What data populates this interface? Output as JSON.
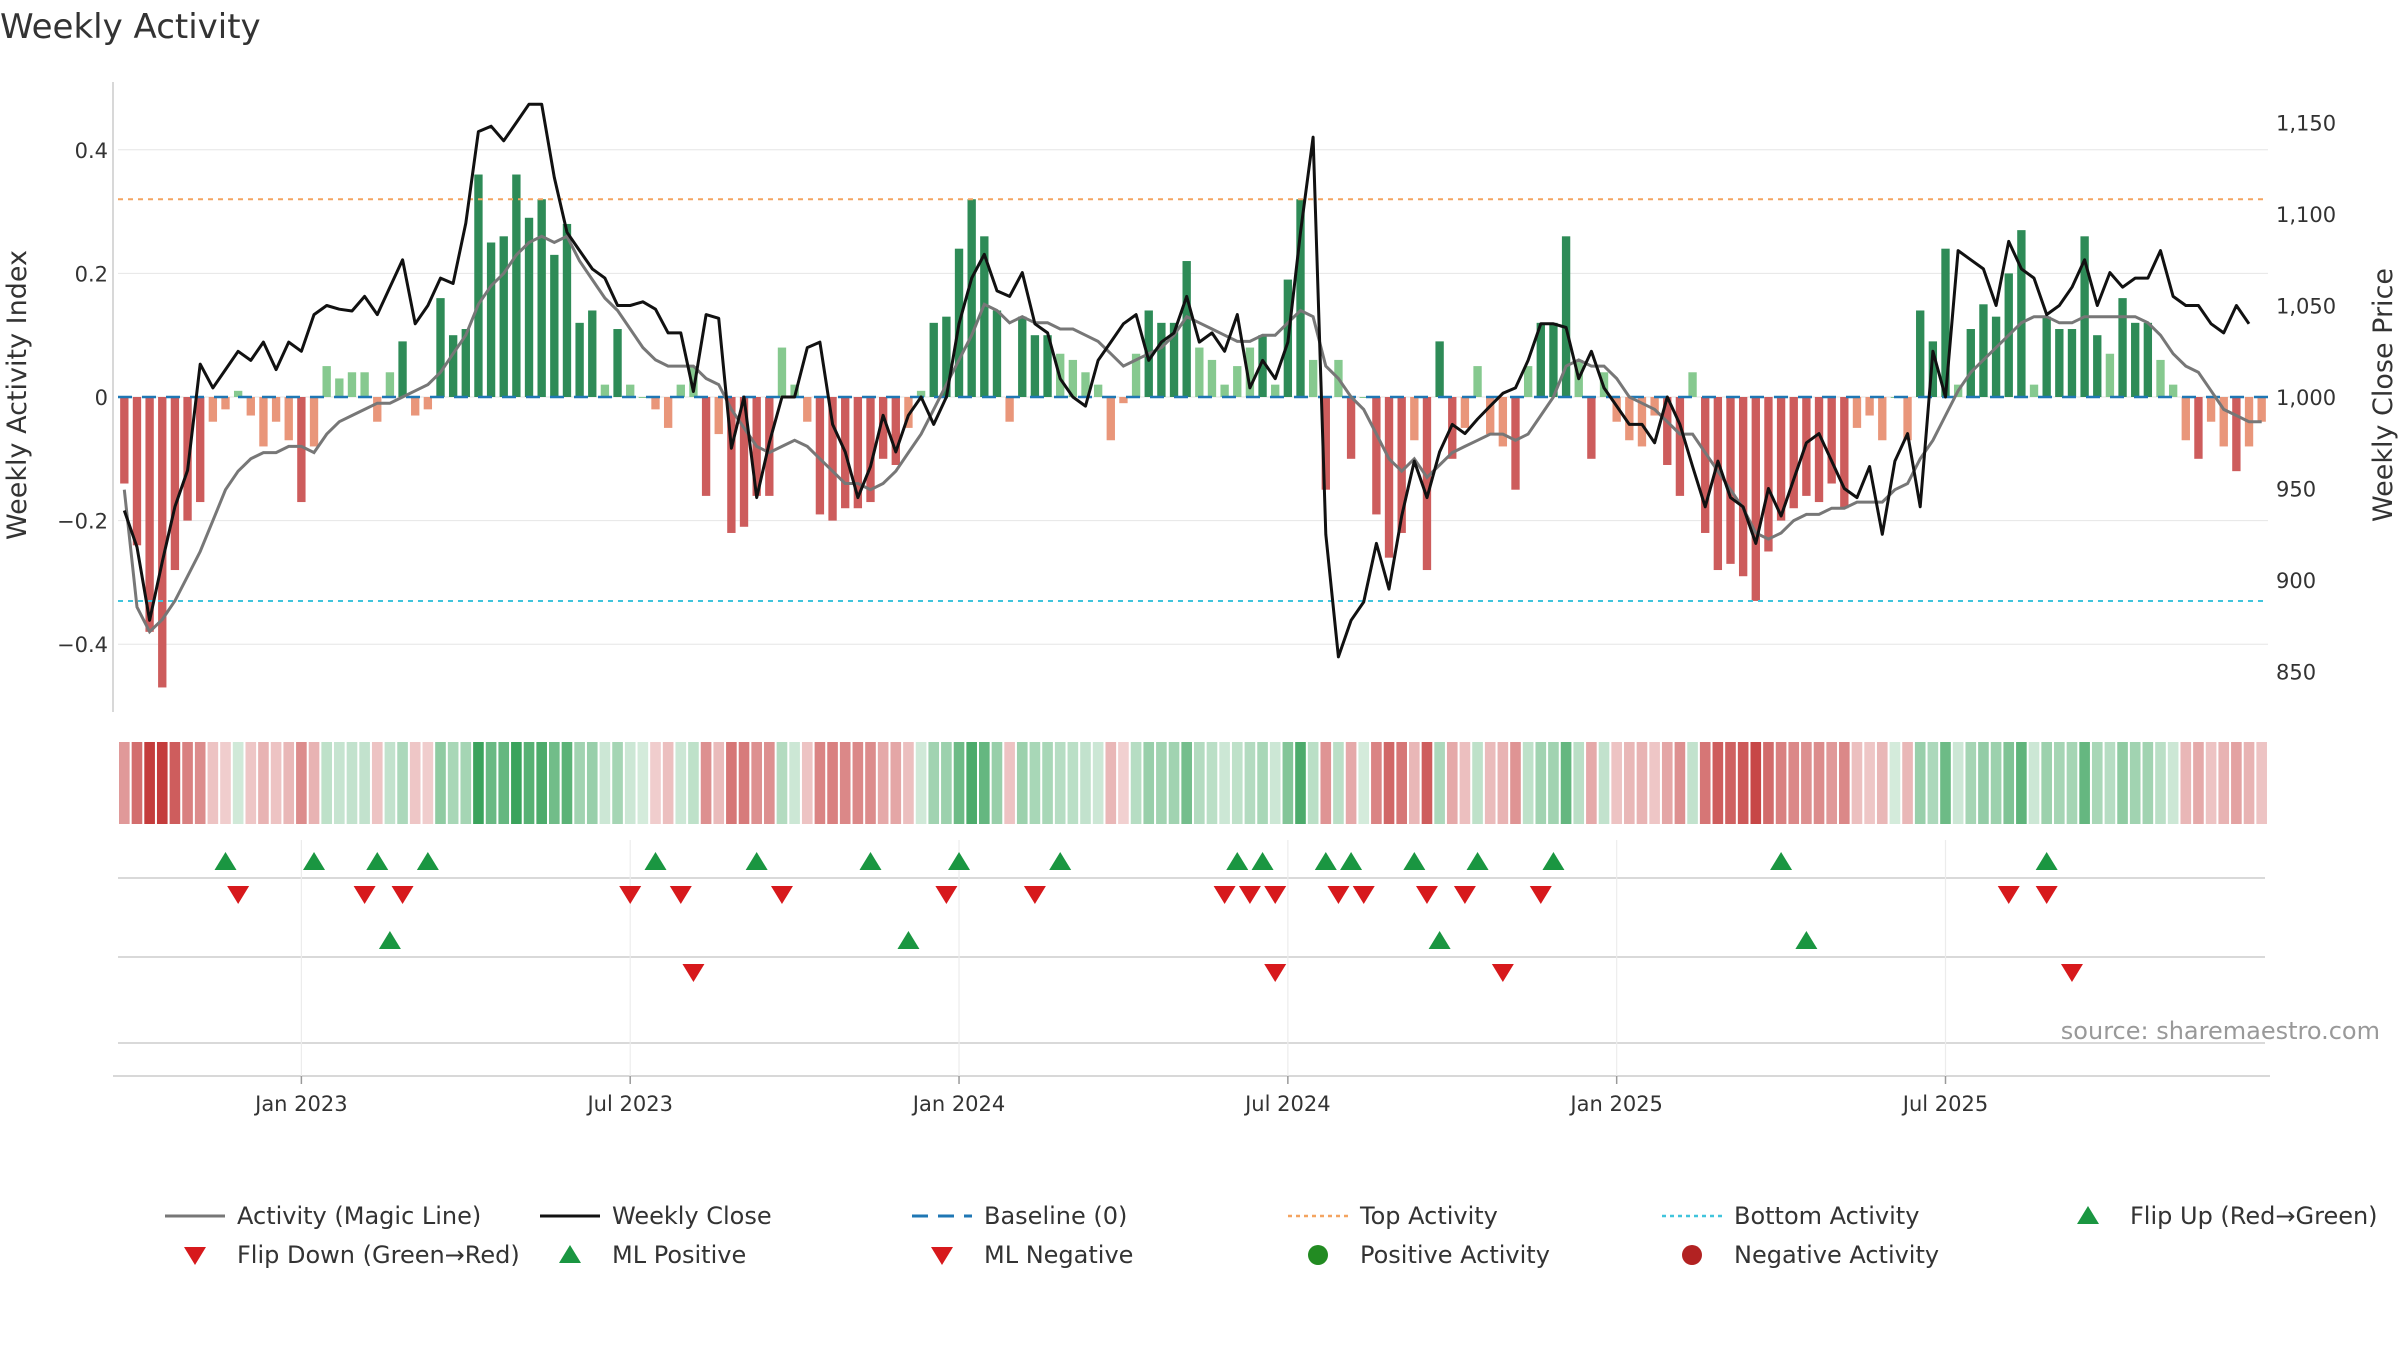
{
  "chart_data": {
    "type": "bar",
    "title": "Weekly Activity",
    "ylabel_left": "Weekly Activity Index",
    "ylabel_right": "Weekly Close Price",
    "source": "source: sharemaestro.com",
    "ylim_left": [
      -0.5,
      0.52
    ],
    "ylim_right": [
      832,
      1168
    ],
    "yticks_left": [
      {
        "v": 0.4,
        "label": "0.4"
      },
      {
        "v": 0.2,
        "label": "0.2"
      },
      {
        "v": 0,
        "label": "0"
      },
      {
        "v": -0.2,
        "label": "−0.2"
      },
      {
        "v": -0.4,
        "label": "−0.4"
      }
    ],
    "yticks_right": [
      {
        "v": 1150,
        "label": "1,150"
      },
      {
        "v": 1100,
        "label": "1,100"
      },
      {
        "v": 1050,
        "label": "1,050"
      },
      {
        "v": 1000,
        "label": "1,000"
      },
      {
        "v": 950,
        "label": "950"
      },
      {
        "v": 900,
        "label": "900"
      },
      {
        "v": 850,
        "label": "850"
      }
    ],
    "xticks": [
      {
        "week": 14.5,
        "label": "Jan 2023"
      },
      {
        "week": 40.5,
        "label": "Jul 2023"
      },
      {
        "week": 66.5,
        "label": "Jan 2024"
      },
      {
        "week": 92.5,
        "label": "Jul 2024"
      },
      {
        "week": 118.5,
        "label": "Jan 2025"
      },
      {
        "week": 144.5,
        "label": "Jul 2025"
      }
    ],
    "top_activity": 0.32,
    "bottom_activity": -0.33,
    "baseline": 0,
    "colors": {
      "pos_strong": "#2e8b57",
      "pos_light": "#86c98f",
      "neg_strong": "#cd5c5c",
      "neg_light": "#e9967a",
      "magic_line": "#777777",
      "close_line": "#111111",
      "baseline": "#1f77b4",
      "top": "#f4a460",
      "bottom": "#40c4dc",
      "up_marker": "#1a9641",
      "down_marker": "#d7191c",
      "pos_dot": "#228b22",
      "neg_dot": "#b22222"
    },
    "activity": [
      -0.14,
      -0.24,
      -0.38,
      -0.47,
      -0.28,
      -0.2,
      -0.17,
      -0.04,
      -0.02,
      0.01,
      -0.03,
      -0.08,
      -0.04,
      -0.07,
      -0.17,
      -0.08,
      0.05,
      0.03,
      0.04,
      0.04,
      -0.04,
      0.04,
      0.09,
      -0.03,
      -0.02,
      0.16,
      0.1,
      0.11,
      0.36,
      0.25,
      0.26,
      0.36,
      0.29,
      0.32,
      0.23,
      0.28,
      0.12,
      0.14,
      0.02,
      0.11,
      0.02,
      0.0,
      -0.02,
      -0.05,
      0.02,
      0.05,
      -0.16,
      -0.06,
      -0.22,
      -0.21,
      -0.16,
      -0.16,
      0.08,
      0.02,
      -0.04,
      -0.19,
      -0.2,
      -0.18,
      -0.18,
      -0.17,
      -0.1,
      -0.11,
      -0.05,
      0.01,
      0.12,
      0.13,
      0.24,
      0.32,
      0.26,
      0.14,
      -0.04,
      0.13,
      0.1,
      0.1,
      0.07,
      0.06,
      0.04,
      0.02,
      -0.07,
      -0.01,
      0.07,
      0.14,
      0.12,
      0.12,
      0.22,
      0.08,
      0.06,
      0.02,
      0.05,
      0.08,
      0.1,
      0.02,
      0.19,
      0.32,
      0.06,
      -0.15,
      0.06,
      -0.1,
      0.0,
      -0.19,
      -0.26,
      -0.22,
      -0.07,
      -0.28,
      0.09,
      -0.1,
      -0.05,
      0.05,
      -0.06,
      -0.08,
      -0.15,
      0.05,
      0.12,
      0.12,
      0.26,
      0.06,
      -0.1,
      0.04,
      -0.04,
      -0.07,
      -0.08,
      -0.03,
      -0.11,
      -0.16,
      0.04,
      -0.22,
      -0.28,
      -0.27,
      -0.29,
      -0.33,
      -0.25,
      -0.2,
      -0.18,
      -0.16,
      -0.17,
      -0.14,
      -0.18,
      -0.05,
      -0.03,
      -0.07,
      0.0,
      -0.07,
      0.14,
      0.09,
      0.24,
      0.02,
      0.11,
      0.15,
      0.13,
      0.2,
      0.27,
      0.02,
      0.13,
      0.11,
      0.11,
      0.26,
      0.1,
      0.07,
      0.16,
      0.12,
      0.12,
      0.06,
      0.02,
      -0.07,
      -0.1,
      -0.04,
      -0.08,
      -0.12,
      -0.08,
      -0.04
    ],
    "magic_line": [
      -0.15,
      -0.34,
      -0.38,
      -0.36,
      -0.33,
      -0.29,
      -0.25,
      -0.2,
      -0.15,
      -0.12,
      -0.1,
      -0.09,
      -0.09,
      -0.08,
      -0.08,
      -0.09,
      -0.06,
      -0.04,
      -0.03,
      -0.02,
      -0.01,
      -0.01,
      0.0,
      0.01,
      0.02,
      0.04,
      0.07,
      0.1,
      0.15,
      0.18,
      0.2,
      0.23,
      0.25,
      0.26,
      0.25,
      0.26,
      0.22,
      0.19,
      0.16,
      0.14,
      0.11,
      0.08,
      0.06,
      0.05,
      0.05,
      0.05,
      0.03,
      0.02,
      -0.02,
      -0.05,
      -0.08,
      -0.09,
      -0.08,
      -0.07,
      -0.08,
      -0.1,
      -0.12,
      -0.14,
      -0.14,
      -0.15,
      -0.14,
      -0.12,
      -0.09,
      -0.06,
      -0.02,
      0.02,
      0.06,
      0.1,
      0.15,
      0.14,
      0.12,
      0.13,
      0.12,
      0.12,
      0.11,
      0.11,
      0.1,
      0.09,
      0.07,
      0.05,
      0.06,
      0.07,
      0.08,
      0.1,
      0.13,
      0.12,
      0.11,
      0.1,
      0.09,
      0.09,
      0.1,
      0.1,
      0.12,
      0.14,
      0.13,
      0.05,
      0.03,
      0.0,
      -0.02,
      -0.06,
      -0.1,
      -0.12,
      -0.1,
      -0.13,
      -0.11,
      -0.09,
      -0.08,
      -0.07,
      -0.06,
      -0.06,
      -0.07,
      -0.06,
      -0.03,
      0.0,
      0.05,
      0.06,
      0.05,
      0.05,
      0.03,
      0.0,
      -0.01,
      -0.02,
      -0.04,
      -0.06,
      -0.06,
      -0.09,
      -0.12,
      -0.15,
      -0.18,
      -0.22,
      -0.23,
      -0.22,
      -0.2,
      -0.19,
      -0.19,
      -0.18,
      -0.18,
      -0.17,
      -0.17,
      -0.17,
      -0.15,
      -0.14,
      -0.1,
      -0.07,
      -0.03,
      0.01,
      0.04,
      0.06,
      0.08,
      0.1,
      0.12,
      0.13,
      0.13,
      0.12,
      0.12,
      0.13,
      0.13,
      0.13,
      0.13,
      0.13,
      0.12,
      0.1,
      0.07,
      0.05,
      0.04,
      0.01,
      -0.02,
      -0.03,
      -0.04,
      -0.04
    ],
    "weekly_close": [
      938,
      918,
      878,
      910,
      940,
      960,
      1018,
      1005,
      1015,
      1025,
      1020,
      1030,
      1015,
      1030,
      1025,
      1045,
      1050,
      1048,
      1047,
      1055,
      1045,
      1060,
      1075,
      1040,
      1050,
      1065,
      1062,
      1095,
      1145,
      1148,
      1140,
      1150,
      1160,
      1160,
      1120,
      1090,
      1080,
      1070,
      1065,
      1050,
      1050,
      1052,
      1048,
      1035,
      1035,
      1003,
      1045,
      1043,
      972,
      1000,
      945,
      975,
      1000,
      1000,
      1027,
      1030,
      985,
      970,
      945,
      962,
      990,
      970,
      990,
      1000,
      985,
      1000,
      1040,
      1065,
      1078,
      1058,
      1055,
      1068,
      1040,
      1035,
      1010,
      1000,
      995,
      1020,
      1030,
      1040,
      1045,
      1020,
      1030,
      1035,
      1055,
      1030,
      1035,
      1025,
      1045,
      1005,
      1020,
      1010,
      1030,
      1090,
      1142,
      925,
      858,
      878,
      888,
      920,
      895,
      935,
      965,
      945,
      970,
      985,
      980,
      988,
      995,
      1002,
      1005,
      1020,
      1040,
      1040,
      1038,
      1010,
      1025,
      1005,
      995,
      985,
      985,
      975,
      1000,
      985,
      962,
      940,
      965,
      945,
      940,
      920,
      950,
      935,
      955,
      975,
      980,
      965,
      950,
      945,
      962,
      925,
      965,
      980,
      940,
      1025,
      1000,
      1080,
      1075,
      1070,
      1050,
      1085,
      1070,
      1065,
      1045,
      1050,
      1060,
      1075,
      1050,
      1068,
      1060,
      1065,
      1065,
      1080,
      1055,
      1050,
      1050,
      1040,
      1035,
      1050,
      1040
    ],
    "flip_up": [
      8,
      15,
      20,
      24,
      42,
      50,
      59,
      66,
      74,
      88,
      90,
      95,
      97,
      102,
      107,
      113,
      131,
      152
    ],
    "flip_down": [
      9,
      19,
      22,
      40,
      44,
      52,
      65,
      72,
      87,
      89,
      91,
      96,
      98,
      103,
      106,
      112,
      149,
      152
    ],
    "ml_positive": [
      21,
      62,
      104,
      133
    ],
    "ml_negative": [
      45,
      91,
      109,
      154
    ],
    "band_intensity_note": "Heat strip mirrors weekly activity index per bar"
  },
  "legend": [
    {
      "label": "Activity (Magic Line)",
      "kind": "line",
      "color": "#777777"
    },
    {
      "label": "Weekly Close",
      "kind": "line",
      "color": "#111111"
    },
    {
      "label": "Baseline (0)",
      "kind": "dash",
      "color": "#1f77b4"
    },
    {
      "label": "Top Activity",
      "kind": "dot",
      "color": "#f4a460"
    },
    {
      "label": "Bottom Activity",
      "kind": "dot",
      "color": "#40c4dc"
    },
    {
      "label": "Flip Up (Red→Green)",
      "kind": "up",
      "color": "#1a9641"
    },
    {
      "label": "Flip Down (Green→Red)",
      "kind": "down",
      "color": "#d7191c"
    },
    {
      "label": "ML Positive",
      "kind": "up",
      "color": "#1a9641"
    },
    {
      "label": "ML Negative",
      "kind": "down",
      "color": "#d7191c"
    },
    {
      "label": "Positive Activity",
      "kind": "circle",
      "color": "#228b22"
    },
    {
      "label": "Negative Activity",
      "kind": "circle",
      "color": "#b22222"
    }
  ]
}
